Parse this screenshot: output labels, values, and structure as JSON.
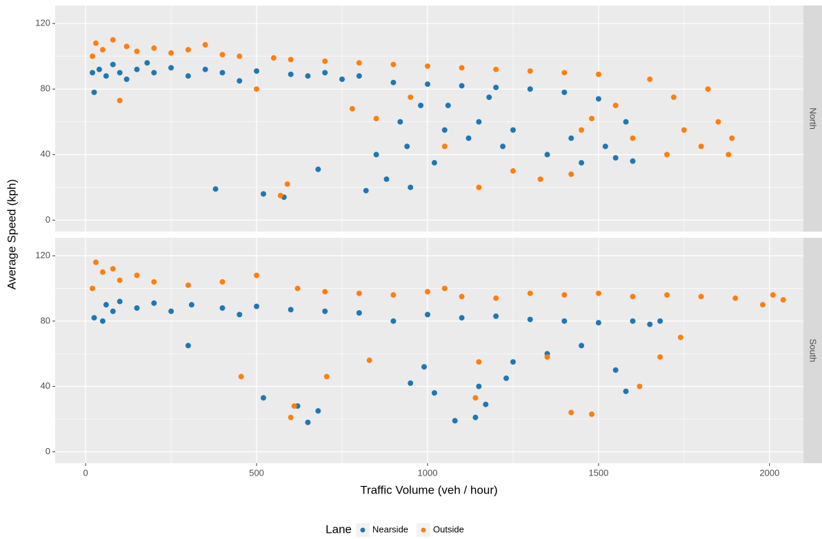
{
  "labels": {
    "x": "Traffic Volume (veh / hour)",
    "y": "Average Speed (kph)"
  },
  "legend": {
    "title": "Lane",
    "entries": [
      {
        "name": "Nearside",
        "color": "#1f77b4"
      },
      {
        "name": "Outside",
        "color": "#ff7f0e"
      }
    ]
  },
  "chart_data": [
    {
      "type": "scatter",
      "facet": "North",
      "xlim": [
        -89,
        2099
      ],
      "ylim": [
        -7,
        131
      ],
      "xticks": [
        0,
        500,
        1000,
        1500,
        2000
      ],
      "yticks": [
        0,
        40,
        80,
        120
      ],
      "minor_xticks": [
        250,
        750,
        1250,
        1750
      ],
      "minor_yticks": [
        20,
        60,
        100
      ],
      "grid": true,
      "series": [
        {
          "name": "Nearside",
          "x": [
            20,
            25,
            40,
            60,
            80,
            100,
            120,
            150,
            180,
            200,
            250,
            300,
            350,
            380,
            400,
            450,
            500,
            520,
            580,
            600,
            650,
            680,
            700,
            750,
            800,
            820,
            850,
            880,
            900,
            920,
            950,
            980,
            1000,
            1020,
            1050,
            1100,
            1120,
            1150,
            1200,
            1220,
            1250,
            1300,
            1350,
            1400,
            1420,
            1450,
            1500,
            1520,
            1550,
            1580,
            1600,
            940,
            1060,
            1180
          ],
          "values": [
            90,
            78,
            92,
            88,
            95,
            90,
            86,
            92,
            96,
            90,
            93,
            88,
            92,
            19,
            90,
            85,
            91,
            16,
            14,
            89,
            88,
            31,
            90,
            86,
            88,
            18,
            40,
            25,
            84,
            60,
            20,
            70,
            83,
            35,
            55,
            82,
            50,
            60,
            81,
            45,
            55,
            80,
            40,
            78,
            50,
            35,
            74,
            45,
            38,
            60,
            36,
            45,
            70,
            75
          ]
        },
        {
          "name": "Outside",
          "x": [
            20,
            30,
            50,
            80,
            100,
            120,
            150,
            200,
            250,
            300,
            350,
            400,
            450,
            500,
            550,
            570,
            590,
            600,
            700,
            780,
            800,
            850,
            900,
            950,
            1000,
            1050,
            1100,
            1150,
            1200,
            1250,
            1300,
            1330,
            1400,
            1450,
            1500,
            1550,
            1600,
            1650,
            1700,
            1720,
            1750,
            1800,
            1820,
            1850,
            1880,
            1890,
            1420,
            1480
          ],
          "values": [
            100,
            108,
            104,
            110,
            73,
            106,
            103,
            105,
            102,
            104,
            107,
            101,
            100,
            80,
            99,
            15,
            22,
            98,
            97,
            68,
            96,
            62,
            95,
            75,
            94,
            45,
            93,
            20,
            92,
            30,
            91,
            25,
            90,
            55,
            89,
            70,
            50,
            86,
            40,
            75,
            55,
            45,
            80,
            60,
            40,
            50,
            28,
            62
          ]
        }
      ]
    },
    {
      "type": "scatter",
      "facet": "South",
      "xlim": [
        -89,
        2099
      ],
      "ylim": [
        -7,
        131
      ],
      "xticks": [
        0,
        500,
        1000,
        1500,
        2000
      ],
      "yticks": [
        0,
        40,
        80,
        120
      ],
      "minor_xticks": [
        250,
        750,
        1250,
        1750
      ],
      "minor_yticks": [
        20,
        60,
        100
      ],
      "grid": true,
      "series": [
        {
          "name": "Nearside",
          "x": [
            25,
            50,
            60,
            80,
            100,
            150,
            200,
            250,
            300,
            310,
            400,
            450,
            500,
            520,
            600,
            620,
            650,
            680,
            700,
            800,
            900,
            950,
            1000,
            1020,
            1080,
            1100,
            1140,
            1150,
            1170,
            1200,
            1250,
            1300,
            1350,
            1400,
            1450,
            1500,
            1550,
            1580,
            1600,
            1650,
            1680,
            990,
            1230
          ],
          "values": [
            82,
            80,
            90,
            86,
            92,
            88,
            91,
            86,
            65,
            90,
            88,
            84,
            89,
            33,
            87,
            28,
            18,
            25,
            86,
            85,
            80,
            42,
            84,
            36,
            19,
            82,
            21,
            40,
            29,
            83,
            55,
            81,
            60,
            80,
            65,
            79,
            50,
            37,
            80,
            78,
            80,
            52,
            45
          ]
        },
        {
          "name": "Outside",
          "x": [
            20,
            30,
            50,
            80,
            100,
            150,
            200,
            300,
            400,
            455,
            500,
            600,
            610,
            620,
            700,
            705,
            800,
            830,
            900,
            1000,
            1050,
            1100,
            1140,
            1150,
            1200,
            1300,
            1350,
            1400,
            1420,
            1480,
            1500,
            1600,
            1620,
            1700,
            1740,
            1800,
            1900,
            1980,
            2010,
            2040,
            1680
          ],
          "values": [
            100,
            116,
            110,
            112,
            105,
            108,
            104,
            102,
            104,
            46,
            108,
            21,
            28,
            100,
            98,
            46,
            97,
            56,
            96,
            98,
            100,
            95,
            33,
            55,
            94,
            97,
            58,
            96,
            24,
            23,
            97,
            95,
            40,
            96,
            70,
            95,
            94,
            90,
            96,
            93,
            58
          ]
        }
      ]
    }
  ]
}
